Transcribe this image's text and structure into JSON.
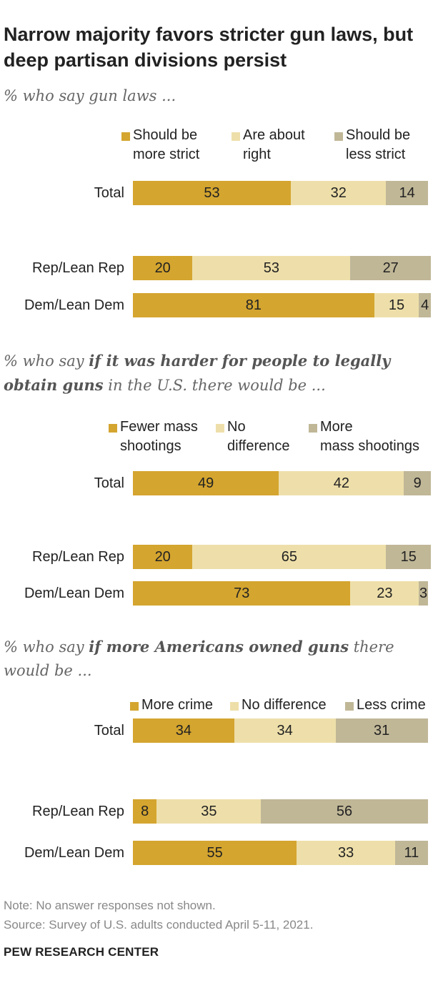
{
  "title": "Narrow majority favors stricter gun laws, but deep partisan divisions persist",
  "colors": {
    "strong": "#D4A52F",
    "middle": "#EEDFAA",
    "weak": "#C0B797"
  },
  "chart_data": [
    {
      "type": "bar",
      "stacked": true,
      "orientation": "horizontal",
      "subtitle": {
        "pre": "% who say gun laws ...",
        "bold": "",
        "post": ""
      },
      "categories": [
        "Total",
        "Rep/Lean Rep",
        "Dem/Lean Dem"
      ],
      "series": [
        {
          "name": "Should be more strict",
          "lines": [
            "Should be",
            "more strict"
          ],
          "values": [
            53,
            20,
            81
          ]
        },
        {
          "name": "Are about right",
          "lines": [
            "Are about",
            "right"
          ],
          "values": [
            32,
            53,
            15
          ]
        },
        {
          "name": "Should be less strict",
          "lines": [
            "Should be",
            "less strict"
          ],
          "values": [
            14,
            27,
            4
          ]
        }
      ],
      "xlim": [
        0,
        100
      ]
    },
    {
      "type": "bar",
      "stacked": true,
      "orientation": "horizontal",
      "subtitle": {
        "pre": "% who say ",
        "bold": "if it was harder for people to legally obtain guns",
        "post": " in the U.S. there would be ..."
      },
      "categories": [
        "Total",
        "Rep/Lean Rep",
        "Dem/Lean Dem"
      ],
      "series": [
        {
          "name": "Fewer mass shootings",
          "lines": [
            "Fewer mass",
            "shootings"
          ],
          "values": [
            49,
            20,
            73
          ]
        },
        {
          "name": "No difference",
          "lines": [
            "No",
            "difference"
          ],
          "values": [
            42,
            65,
            23
          ]
        },
        {
          "name": "More mass shootings",
          "lines": [
            "More",
            "mass shootings"
          ],
          "values": [
            9,
            15,
            3
          ]
        }
      ],
      "xlim": [
        0,
        100
      ]
    },
    {
      "type": "bar",
      "stacked": true,
      "orientation": "horizontal",
      "subtitle": {
        "pre": "% who say ",
        "bold": "if more Americans owned guns",
        "post": " there would be ..."
      },
      "categories": [
        "Total",
        "Rep/Lean Rep",
        "Dem/Lean Dem"
      ],
      "series": [
        {
          "name": "More crime",
          "lines": [
            "More crime"
          ],
          "values": [
            34,
            8,
            55
          ]
        },
        {
          "name": "No difference",
          "lines": [
            "No difference"
          ],
          "values": [
            34,
            35,
            33
          ]
        },
        {
          "name": "Less crime",
          "lines": [
            "Less crime"
          ],
          "values": [
            31,
            56,
            11
          ]
        }
      ],
      "xlim": [
        0,
        100
      ]
    }
  ],
  "note": "Note: No answer responses not shown.",
  "source": "Source: Survey of U.S. adults conducted April 5-11, 2021.",
  "brand": "PEW RESEARCH CENTER"
}
